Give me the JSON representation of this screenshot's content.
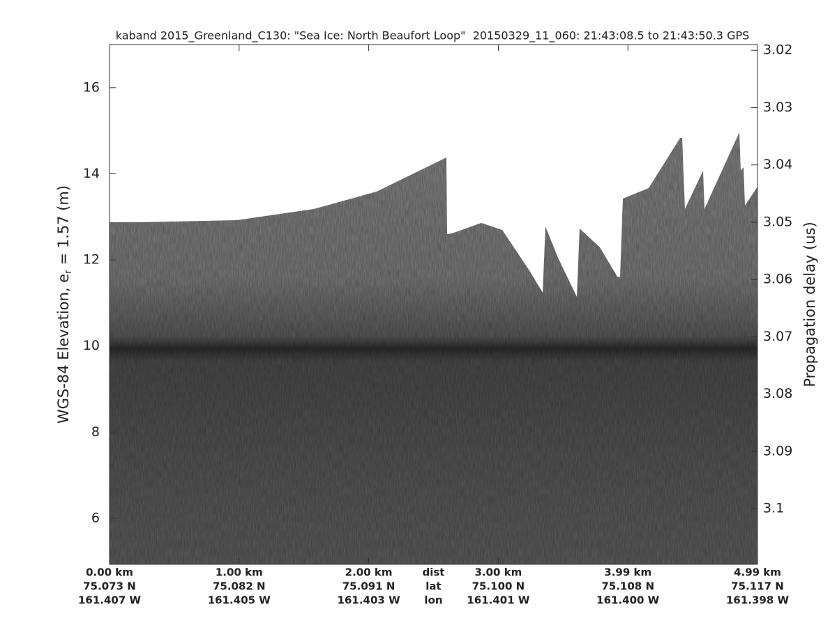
{
  "chart_data": {
    "type": "echogram",
    "title": "kaband 2015_Greenland_C130: \"Sea Ice: North Beaufort Loop\"  20150329_11_060: 21:43:08.5 to 21:43:50.3 GPS",
    "ylabel_parts": [
      "WGS-84 Elevation, e",
      "r",
      " = 1.57 (m)"
    ],
    "y2label": "Propagation delay (us)",
    "ylim": [
      4.93,
      17.0
    ],
    "yticks": [
      6,
      8,
      10,
      12,
      14,
      16
    ],
    "y2lim": [
      3.019,
      3.1097
    ],
    "y2ticks": [
      3.02,
      3.03,
      3.04,
      3.05,
      3.06,
      3.07,
      3.08,
      3.09,
      3.1
    ],
    "y2_inverted": true,
    "x_ticks": [
      {
        "dist": "0.00 km",
        "lat": "75.073 N",
        "lon": "161.407 W"
      },
      {
        "dist": "1.00 km",
        "lat": "75.082 N",
        "lon": "161.405 W"
      },
      {
        "dist": "2.00 km",
        "lat": "75.091 N",
        "lon": "161.403 W"
      },
      {
        "dist": "3.00 km",
        "lat": "75.100 N",
        "lon": "161.401 W"
      },
      {
        "dist": "3.99 km",
        "lat": "75.108 N",
        "lon": "161.400 W"
      },
      {
        "dist": "4.99 km",
        "lat": "75.117 N",
        "lon": "161.398 W"
      }
    ],
    "x_row_labels": {
      "dist": "dist",
      "lat": "lat",
      "lon": "lon"
    }
  }
}
